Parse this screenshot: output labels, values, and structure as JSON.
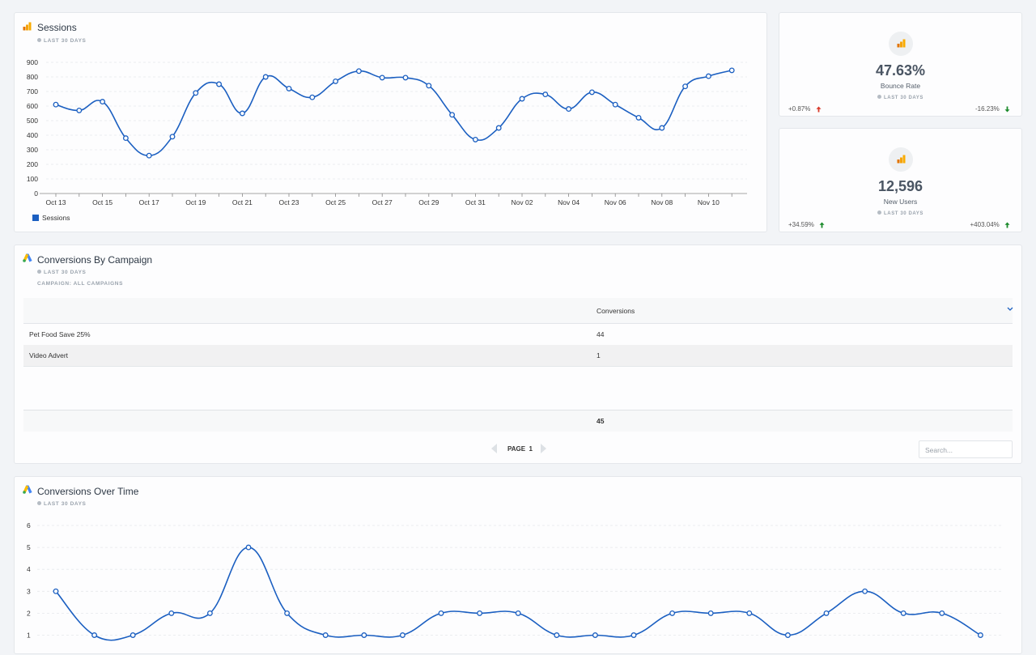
{
  "sessions": {
    "title": "Sessions",
    "period": "LAST 30 DAYS",
    "legend": "Sessions",
    "color": "#1b5fc1"
  },
  "bounce": {
    "value": "47.63%",
    "label": "Bounce Rate",
    "period": "LAST 30 DAYS",
    "left_delta": "+0.87%",
    "right_delta": "-16.23%"
  },
  "newusers": {
    "value": "12,596",
    "label": "New Users",
    "period": "LAST 30 DAYS",
    "left_delta": "+34.59%",
    "right_delta": "+403.04%"
  },
  "campaign": {
    "title": "Conversions By Campaign",
    "period": "LAST 30 DAYS",
    "filter": "CAMPAIGN: ALL CAMPAIGNS",
    "col_header": "Conversions",
    "rows": [
      {
        "name": "Pet Food Save 25%",
        "value": "44"
      },
      {
        "name": "Video Advert",
        "value": "1"
      }
    ],
    "total": "45",
    "page_label": "PAGE  1",
    "search_placeholder": "Search..."
  },
  "cot": {
    "title": "Conversions Over Time",
    "period": "LAST 30 DAYS"
  },
  "colors": {
    "accent": "#1b5fc1",
    "up_green": "#1a8a2a",
    "down_red": "#d93a2b",
    "analytics_orange": "#f4a30c"
  },
  "chart_data": [
    {
      "type": "line",
      "title": "Sessions",
      "x": [
        "Oct 13",
        "Oct 14",
        "Oct 15",
        "Oct 16",
        "Oct 17",
        "Oct 18",
        "Oct 19",
        "Oct 20",
        "Oct 21",
        "Oct 22",
        "Oct 23",
        "Oct 24",
        "Oct 25",
        "Oct 26",
        "Oct 27",
        "Oct 28",
        "Oct 29",
        "Oct 30",
        "Oct 31",
        "Nov 01",
        "Nov 02",
        "Nov 03",
        "Nov 04",
        "Nov 05",
        "Nov 06",
        "Nov 07",
        "Nov 08",
        "Nov 09",
        "Nov 10",
        "Nov 11"
      ],
      "tick_labels": [
        "Oct 13",
        "Oct 15",
        "Oct 17",
        "Oct 19",
        "Oct 21",
        "Oct 23",
        "Oct 25",
        "Oct 27",
        "Oct 29",
        "Oct 31",
        "Nov 02",
        "Nov 04",
        "Nov 06",
        "Nov 08",
        "Nov 10"
      ],
      "series": [
        {
          "name": "Sessions",
          "values": [
            610,
            570,
            630,
            380,
            260,
            390,
            690,
            750,
            550,
            800,
            720,
            660,
            770,
            840,
            795,
            795,
            740,
            540,
            370,
            450,
            650,
            680,
            580,
            695,
            610,
            520,
            450,
            735,
            805,
            845
          ]
        }
      ],
      "ylim": [
        0,
        900
      ],
      "yticks": [
        0,
        100,
        200,
        300,
        400,
        500,
        600,
        700,
        800,
        900
      ],
      "legend": "bottom-left",
      "grid": true
    },
    {
      "type": "line",
      "title": "Conversions Over Time",
      "series": [
        {
          "values": [
            3,
            1,
            1,
            2,
            2,
            5,
            2,
            1,
            1,
            1,
            2,
            2,
            2,
            1,
            1,
            1,
            2,
            2,
            2,
            1,
            2,
            3,
            2,
            2,
            1
          ]
        }
      ],
      "yticks": [
        1,
        2,
        3,
        4,
        5,
        6
      ],
      "grid": true
    }
  ]
}
